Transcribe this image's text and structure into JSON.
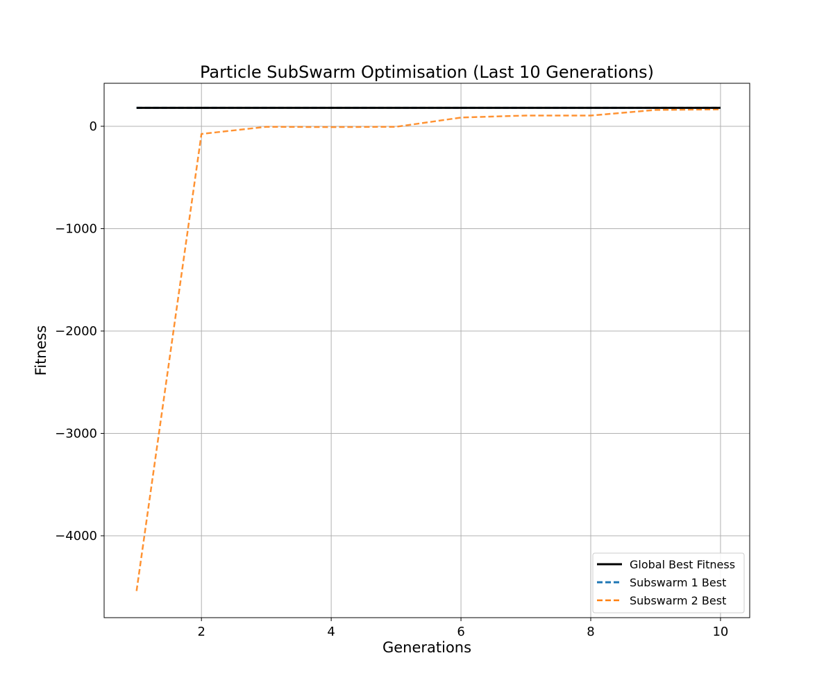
{
  "chart_data": {
    "type": "line",
    "title": "Particle SubSwarm Optimisation (Last 10 Generations)",
    "xlabel": "Generations",
    "ylabel": "Fitness",
    "xlim": [
      0.5,
      10.45
    ],
    "ylim": [
      -4800,
      420
    ],
    "xticks": [
      2,
      4,
      6,
      8,
      10
    ],
    "xtick_labels": [
      "2",
      "4",
      "6",
      "8",
      "10"
    ],
    "yticks": [
      0,
      -1000,
      -2000,
      -3000,
      -4000
    ],
    "ytick_labels": [
      "0",
      "−1000",
      "−2000",
      "−3000",
      "−4000"
    ],
    "grid": true,
    "legend_position": "lower-right",
    "x": [
      1,
      2,
      3,
      4,
      5,
      6,
      7,
      8,
      9,
      10
    ],
    "series": [
      {
        "name": "Global Best Fitness",
        "values": [
          180,
          180,
          180,
          180,
          180,
          180,
          180,
          180,
          180,
          180
        ],
        "color": "#000000",
        "style": "solid"
      },
      {
        "name": "Subswarm 1 Best",
        "values": [
          180,
          180,
          180,
          180,
          180,
          180,
          180,
          180,
          180,
          180
        ],
        "color": "#1f77b4",
        "style": "dashed"
      },
      {
        "name": "Subswarm 2 Best",
        "values": [
          -4540,
          -75,
          -5,
          -8,
          -5,
          85,
          105,
          105,
          160,
          165
        ],
        "color": "#ff7f0e",
        "style": "dashed"
      }
    ]
  }
}
